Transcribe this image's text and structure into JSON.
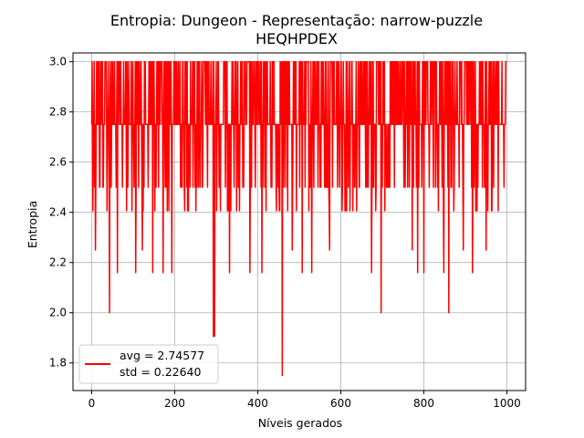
{
  "chart_data": {
    "type": "line",
    "title_line1": "Entropia: Dungeon - Representação: narrow-puzzle",
    "title_line2": "HEQHPDEX",
    "xlabel": "Níveis gerados",
    "ylabel": "Entropia",
    "xlim": [
      -45,
      1045
    ],
    "ylim": [
      1.69,
      3.035
    ],
    "x_ticks": [
      0,
      200,
      400,
      600,
      800,
      1000
    ],
    "x_tick_labels": [
      "0",
      "200",
      "400",
      "600",
      "800",
      "1000"
    ],
    "y_ticks": [
      1.8,
      2.0,
      2.2,
      2.4,
      2.6,
      2.8,
      3.0
    ],
    "y_tick_labels": [
      "1.8",
      "2.0",
      "2.2",
      "2.4",
      "2.6",
      "2.8",
      "3.0"
    ],
    "grid": true,
    "legend_position": "lower-left",
    "legend_lines": [
      "avg = 2.74577",
      "std = 0.22640"
    ],
    "series_color": "#ff0000",
    "n_points": 1000,
    "series_values_note_free": true,
    "dips": [
      {
        "x": 9,
        "y": 2.25
      },
      {
        "x": 43,
        "y": 2.0
      },
      {
        "x": 62,
        "y": 2.16
      },
      {
        "x": 106,
        "y": 2.16
      },
      {
        "x": 122,
        "y": 2.25
      },
      {
        "x": 147,
        "y": 2.16
      },
      {
        "x": 172,
        "y": 2.16
      },
      {
        "x": 193,
        "y": 2.16
      },
      {
        "x": 293,
        "y": 1.906
      },
      {
        "x": 296,
        "y": 1.906
      },
      {
        "x": 332,
        "y": 2.16
      },
      {
        "x": 381,
        "y": 2.16
      },
      {
        "x": 410,
        "y": 2.16
      },
      {
        "x": 459,
        "y": 1.75
      },
      {
        "x": 483,
        "y": 2.25
      },
      {
        "x": 507,
        "y": 2.16
      },
      {
        "x": 530,
        "y": 2.16
      },
      {
        "x": 573,
        "y": 2.25
      },
      {
        "x": 674,
        "y": 2.16
      },
      {
        "x": 697,
        "y": 2.0
      },
      {
        "x": 772,
        "y": 2.25
      },
      {
        "x": 785,
        "y": 2.16
      },
      {
        "x": 800,
        "y": 2.16
      },
      {
        "x": 848,
        "y": 2.16
      },
      {
        "x": 860,
        "y": 2.0
      },
      {
        "x": 895,
        "y": 2.25
      },
      {
        "x": 917,
        "y": 2.16
      },
      {
        "x": 950,
        "y": 2.25
      }
    ],
    "levels": [
      3.0,
      2.75,
      2.5,
      2.406,
      2.25
    ]
  }
}
